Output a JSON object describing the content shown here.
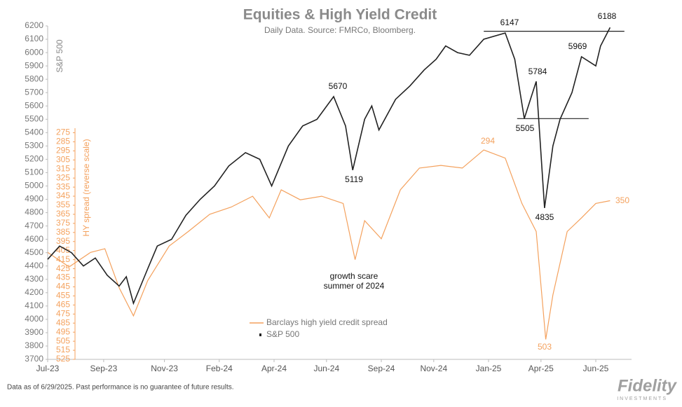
{
  "chart_data": {
    "type": "line",
    "title": "Equities & High Yield Credit",
    "subtitle": "Daily Data.  Source: FMRCo, Bloomberg.",
    "y_label": "S&P 500",
    "y2_label": "HY spread (reverse scale)",
    "xlim": [
      0,
      24.5
    ],
    "xticks": [
      {
        "value": 0,
        "label": "Jul-23"
      },
      {
        "value": 2.35,
        "label": "Sep-23"
      },
      {
        "value": 4.9,
        "label": "Nov-23"
      },
      {
        "value": 7.2,
        "label": "Feb-24"
      },
      {
        "value": 9.5,
        "label": "Apr-24"
      },
      {
        "value": 11.7,
        "label": "Jun-24"
      },
      {
        "value": 14.0,
        "label": "Sep-24"
      },
      {
        "value": 16.2,
        "label": "Nov-24"
      },
      {
        "value": 18.5,
        "label": "Jan-25"
      },
      {
        "value": 20.7,
        "label": "Apr-25"
      },
      {
        "value": 23.0,
        "label": "Jun-25"
      }
    ],
    "ylim": [
      3700,
      6200
    ],
    "yticks": [
      3700,
      3800,
      3900,
      4000,
      4100,
      4200,
      4300,
      4400,
      4500,
      4600,
      4700,
      4800,
      4900,
      5000,
      5100,
      5200,
      5300,
      5400,
      5500,
      5600,
      5700,
      5800,
      5900,
      6000,
      6100,
      6200
    ],
    "y2lim": [
      525,
      270
    ],
    "y2ticks": [
      525,
      515,
      505,
      495,
      485,
      475,
      465,
      455,
      445,
      435,
      425,
      415,
      405,
      395,
      385,
      375,
      365,
      355,
      345,
      335,
      325,
      315,
      305,
      295,
      285,
      275
    ],
    "series": [
      {
        "name": "Barclays high yield credit spread",
        "color": "#f4a15d",
        "axis": "y2",
        "x": [
          0,
          0.9,
          1.8,
          2.4,
          3.0,
          3.6,
          4.2,
          5.1,
          5.9,
          6.8,
          7.7,
          8.6,
          9.3,
          9.8,
          10.6,
          11.5,
          12.4,
          12.9,
          13.3,
          14.0,
          14.8,
          15.6,
          16.5,
          17.4,
          18.3,
          19.2,
          19.9,
          20.5,
          20.9,
          21.2,
          21.8,
          22.4,
          23.0,
          23.6
        ],
        "values": [
          407,
          423,
          407,
          403,
          446,
          477,
          438,
          400,
          384,
          365,
          357,
          345,
          369,
          338,
          349,
          345,
          353,
          415,
          372,
          392,
          338,
          314,
          311,
          314,
          294,
          303,
          353,
          384,
          503,
          454,
          384,
          369,
          353,
          350
        ]
      },
      {
        "name": "S&P 500",
        "color": "#222222",
        "x": [
          0,
          0.5,
          1.0,
          1.5,
          2.0,
          2.5,
          3.0,
          3.3,
          3.6,
          4.2,
          4.6,
          5.2,
          5.8,
          6.4,
          7.0,
          7.6,
          8.3,
          8.9,
          9.4,
          10.1,
          10.7,
          11.3,
          12.0,
          12.5,
          12.8,
          13.3,
          13.6,
          13.9,
          14.6,
          15.2,
          15.8,
          16.3,
          16.7,
          17.2,
          17.7,
          18.3,
          19.2,
          19.6,
          20.0,
          20.5,
          20.85,
          21.2,
          21.5,
          22.0,
          22.4,
          23.0,
          23.2,
          23.6
        ],
        "values": [
          4450,
          4550,
          4500,
          4400,
          4460,
          4330,
          4250,
          4320,
          4120,
          4380,
          4550,
          4600,
          4780,
          4900,
          5000,
          5150,
          5250,
          5200,
          5000,
          5300,
          5450,
          5500,
          5670,
          5450,
          5119,
          5500,
          5600,
          5420,
          5650,
          5750,
          5870,
          5950,
          6050,
          6000,
          5980,
          6100,
          6147,
          5950,
          5505,
          5784,
          4835,
          5300,
          5500,
          5700,
          5969,
          5900,
          6050,
          6188
        ]
      }
    ],
    "reference_lines": [
      {
        "value": 6160,
        "x": [
          18.3,
          24.2
        ]
      },
      {
        "value": 5505,
        "x": [
          19.7,
          22.7
        ]
      }
    ],
    "annotations": [
      "5670",
      "5119",
      "6147",
      "5784",
      "5505",
      "4835",
      "5969",
      "6188",
      "growth scare",
      "summer of 2024"
    ],
    "y2_annotations": [
      "294",
      "503",
      "350"
    ],
    "footnote": "Data as of 6/29/2025. Past performance is no guarantee of future results.",
    "logo": "Fidelity",
    "logo_sub": "INVESTMENTS"
  }
}
